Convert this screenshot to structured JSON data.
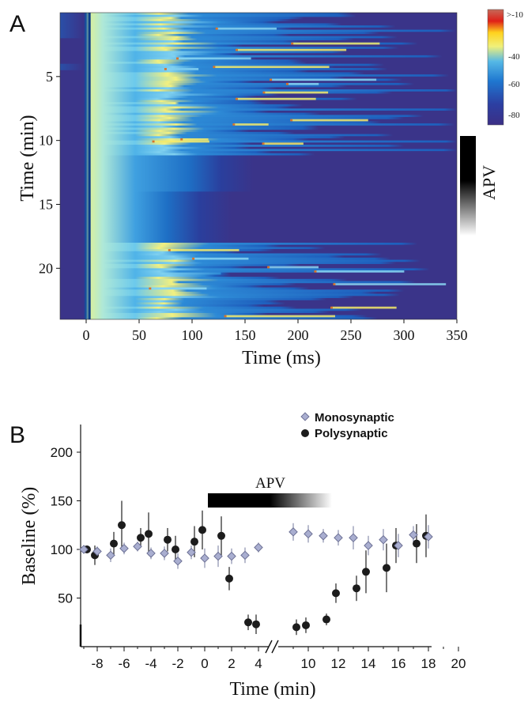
{
  "panels": {
    "a": {
      "label": "A",
      "xlabel": "Time (ms)",
      "ylabel": "Time (min)",
      "xticks": [
        0,
        50,
        100,
        150,
        200,
        250,
        300,
        350
      ],
      "yticks": [
        5,
        10,
        15,
        20
      ],
      "colorbar": {
        "ticks": [
          ">-10",
          "-40",
          "-60",
          "-80"
        ]
      },
      "drug_label": "APV"
    },
    "b": {
      "label": "B",
      "xlabel": "Time (min)",
      "ylabel": "Baseline (%)",
      "yticks": [
        50,
        100,
        150,
        200
      ],
      "xticks": [
        -8,
        -6,
        -4,
        -2,
        0,
        2,
        4,
        10,
        12,
        14,
        16,
        18,
        20
      ],
      "drug_label": "APV",
      "legend": [
        "Monosynaptic",
        "Polysynaptic"
      ]
    }
  },
  "chart_data": [
    {
      "type": "heatmap",
      "title": "",
      "xlabel": "Time (ms)",
      "ylabel": "Time (min)",
      "xlim": [
        -20,
        350
      ],
      "ylim": [
        0,
        24
      ],
      "colorbar_range": [
        -85,
        -10
      ],
      "colorbar_ticks": [
        ">-10",
        "-40",
        "-60",
        "-80"
      ],
      "apv_bar": "black-to-white gradient spanning approx. 10.5 to 16 min",
      "description_of_rows": "each row is one trace over time; early (1-11 min) and late (18-24 min) rows show late depolarizing responses (yellow) 50-350 ms; rows during APV (~11-18 min) show only the early response"
    },
    {
      "type": "scatter",
      "title": "",
      "xlabel": "Time (min)",
      "ylabel": "Baseline (%)",
      "ylim": [
        0,
        200
      ],
      "axis_break_between": [
        5,
        9
      ],
      "apv_bar": [
        0,
        13
      ],
      "legend_position": "top-right",
      "series": [
        {
          "name": "Monosynaptic",
          "marker": "diamond",
          "color": "#a9aed0",
          "x": [
            -9,
            -8,
            -7,
            -6,
            -5,
            -4,
            -3,
            -2,
            -1,
            0,
            1,
            2,
            3,
            4,
            9,
            10,
            11,
            12,
            13,
            14,
            15,
            16,
            17,
            18
          ],
          "y": [
            100,
            98,
            94,
            101,
            103,
            96,
            96,
            88,
            97,
            91,
            93,
            93,
            94,
            102,
            118,
            116,
            114,
            112,
            112,
            104,
            110,
            104,
            115,
            113
          ],
          "err": [
            2,
            5,
            7,
            6,
            5,
            6,
            7,
            8,
            7,
            10,
            11,
            8,
            8,
            5,
            9,
            9,
            7,
            8,
            12,
            10,
            11,
            12,
            9,
            12
          ]
        },
        {
          "name": "Polysynaptic",
          "marker": "circle",
          "color": "#1c1c1c",
          "x": [
            -9,
            -8,
            -7,
            -6,
            -5,
            -4,
            -3,
            -2,
            -1,
            0,
            1,
            2,
            3,
            4,
            9,
            10,
            11,
            12,
            13,
            14,
            15,
            16,
            17,
            18
          ],
          "y": [
            100,
            94,
            106,
            125,
            112,
            116,
            110,
            100,
            108,
            120,
            114,
            70,
            25,
            23,
            20,
            22,
            28,
            55,
            60,
            77,
            81,
            104,
            106,
            114
          ],
          "err": [
            2,
            10,
            12,
            25,
            10,
            22,
            12,
            14,
            16,
            20,
            20,
            12,
            8,
            10,
            8,
            8,
            6,
            10,
            13,
            22,
            25,
            18,
            20,
            22
          ]
        }
      ]
    }
  ]
}
